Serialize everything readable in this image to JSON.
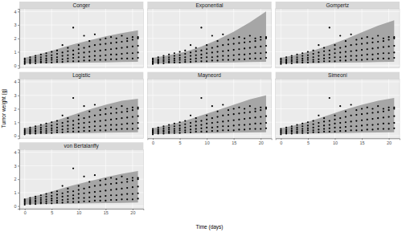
{
  "chart_data": {
    "type": "scatter",
    "x_label": "Time (days)",
    "y_label": "Tumor weight (g)",
    "xlim": [
      -1,
      22
    ],
    "ylim": [
      -0.2,
      4.2
    ],
    "xticks": [
      0,
      5,
      10,
      15,
      20
    ],
    "yticks": [
      0,
      1,
      2,
      3,
      4
    ],
    "grid": true,
    "color": "#000000",
    "x": [
      0,
      0,
      0,
      0,
      0,
      1,
      1,
      1,
      1,
      1,
      2,
      2,
      2,
      2,
      2,
      3,
      3,
      3,
      3,
      3,
      4,
      4,
      4,
      4,
      4,
      5,
      5,
      5,
      5,
      5,
      6,
      6,
      6,
      6,
      6,
      7,
      7,
      7,
      7,
      7,
      8,
      8,
      8,
      8,
      8,
      9,
      9,
      9,
      9,
      9,
      10,
      10,
      10,
      10,
      10,
      11,
      11,
      11,
      11,
      11,
      12,
      12,
      12,
      12,
      12,
      13,
      13,
      13,
      13,
      13,
      14,
      14,
      14,
      14,
      14,
      15,
      15,
      15,
      15,
      15,
      16,
      16,
      16,
      16,
      16,
      17,
      17,
      17,
      17,
      17,
      18,
      18,
      18,
      18,
      18,
      19,
      19,
      19,
      19,
      19,
      20,
      20,
      20,
      20,
      20,
      21,
      21,
      21,
      21,
      21
    ],
    "y": [
      0.1,
      0.2,
      0.3,
      0.4,
      0.5,
      0.15,
      0.25,
      0.35,
      0.45,
      0.6,
      0.15,
      0.3,
      0.4,
      0.55,
      0.7,
      0.2,
      0.3,
      0.45,
      0.6,
      0.8,
      0.2,
      0.35,
      0.5,
      0.7,
      0.9,
      0.2,
      0.4,
      0.55,
      0.75,
      1.0,
      0.25,
      0.4,
      0.6,
      0.85,
      1.1,
      0.25,
      0.45,
      0.7,
      0.95,
      1.5,
      0.3,
      0.5,
      0.75,
      1.05,
      1.3,
      0.3,
      0.55,
      0.8,
      1.1,
      2.8,
      0.3,
      0.6,
      0.9,
      1.2,
      1.5,
      0.35,
      0.6,
      0.95,
      1.3,
      2.2,
      0.35,
      0.65,
      1.0,
      1.4,
      1.8,
      0.4,
      0.7,
      1.05,
      1.5,
      2.3,
      0.4,
      0.7,
      1.1,
      1.55,
      1.9,
      0.4,
      0.75,
      1.15,
      1.6,
      2.0,
      0.45,
      0.8,
      1.2,
      1.65,
      2.1,
      0.45,
      0.8,
      1.25,
      1.7,
      2.0,
      0.5,
      0.85,
      1.3,
      1.75,
      2.2,
      0.5,
      0.9,
      1.35,
      1.8,
      2.0,
      0.5,
      0.9,
      1.4,
      1.9,
      2.1,
      0.55,
      0.95,
      1.45,
      2.0,
      2.1
    ],
    "panels": [
      {
        "name": "Conger",
        "x": [
          0,
          3,
          6,
          9,
          12,
          15,
          18,
          21
        ],
        "lower": [
          0.12,
          0.14,
          0.16,
          0.18,
          0.2,
          0.22,
          0.24,
          0.26
        ],
        "upper": [
          0.55,
          0.85,
          1.2,
          1.55,
          1.85,
          2.15,
          2.4,
          2.6
        ]
      },
      {
        "name": "Exponential",
        "x": [
          0,
          3,
          6,
          9,
          12,
          15,
          18,
          21
        ],
        "lower": [
          0.12,
          0.14,
          0.16,
          0.18,
          0.2,
          0.22,
          0.24,
          0.26
        ],
        "upper": [
          0.55,
          0.75,
          1.0,
          1.4,
          1.9,
          2.5,
          3.2,
          4.0
        ]
      },
      {
        "name": "Gompertz",
        "x": [
          0,
          3,
          6,
          9,
          12,
          15,
          18,
          21
        ],
        "lower": [
          0.12,
          0.14,
          0.16,
          0.18,
          0.2,
          0.22,
          0.24,
          0.26
        ],
        "upper": [
          0.55,
          0.8,
          1.1,
          1.5,
          1.95,
          2.45,
          2.95,
          3.35
        ]
      },
      {
        "name": "Logistic",
        "x": [
          0,
          3,
          6,
          9,
          12,
          15,
          18,
          21
        ],
        "lower": [
          0.12,
          0.14,
          0.16,
          0.18,
          0.2,
          0.22,
          0.24,
          0.26
        ],
        "upper": [
          0.55,
          0.8,
          1.15,
          1.55,
          1.95,
          2.3,
          2.6,
          2.75
        ]
      },
      {
        "name": "Mayneord",
        "x": [
          0,
          3,
          6,
          9,
          12,
          15,
          18,
          21
        ],
        "lower": [
          0.12,
          0.14,
          0.16,
          0.18,
          0.2,
          0.22,
          0.24,
          0.26
        ],
        "upper": [
          0.55,
          0.8,
          1.1,
          1.5,
          1.9,
          2.3,
          2.7,
          3.0
        ]
      },
      {
        "name": "Simeoni",
        "x": [
          0,
          3,
          6,
          9,
          12,
          15,
          18,
          21
        ],
        "lower": [
          0.12,
          0.14,
          0.16,
          0.18,
          0.2,
          0.22,
          0.24,
          0.26
        ],
        "upper": [
          0.55,
          0.8,
          1.15,
          1.55,
          1.95,
          2.3,
          2.6,
          2.8
        ]
      },
      {
        "name": "von Bertalanffy",
        "x": [
          0,
          3,
          6,
          9,
          12,
          15,
          18,
          21
        ],
        "lower": [
          0.12,
          0.14,
          0.16,
          0.18,
          0.2,
          0.22,
          0.24,
          0.26
        ],
        "upper": [
          0.55,
          0.85,
          1.2,
          1.55,
          1.85,
          2.15,
          2.4,
          2.6
        ]
      }
    ]
  }
}
